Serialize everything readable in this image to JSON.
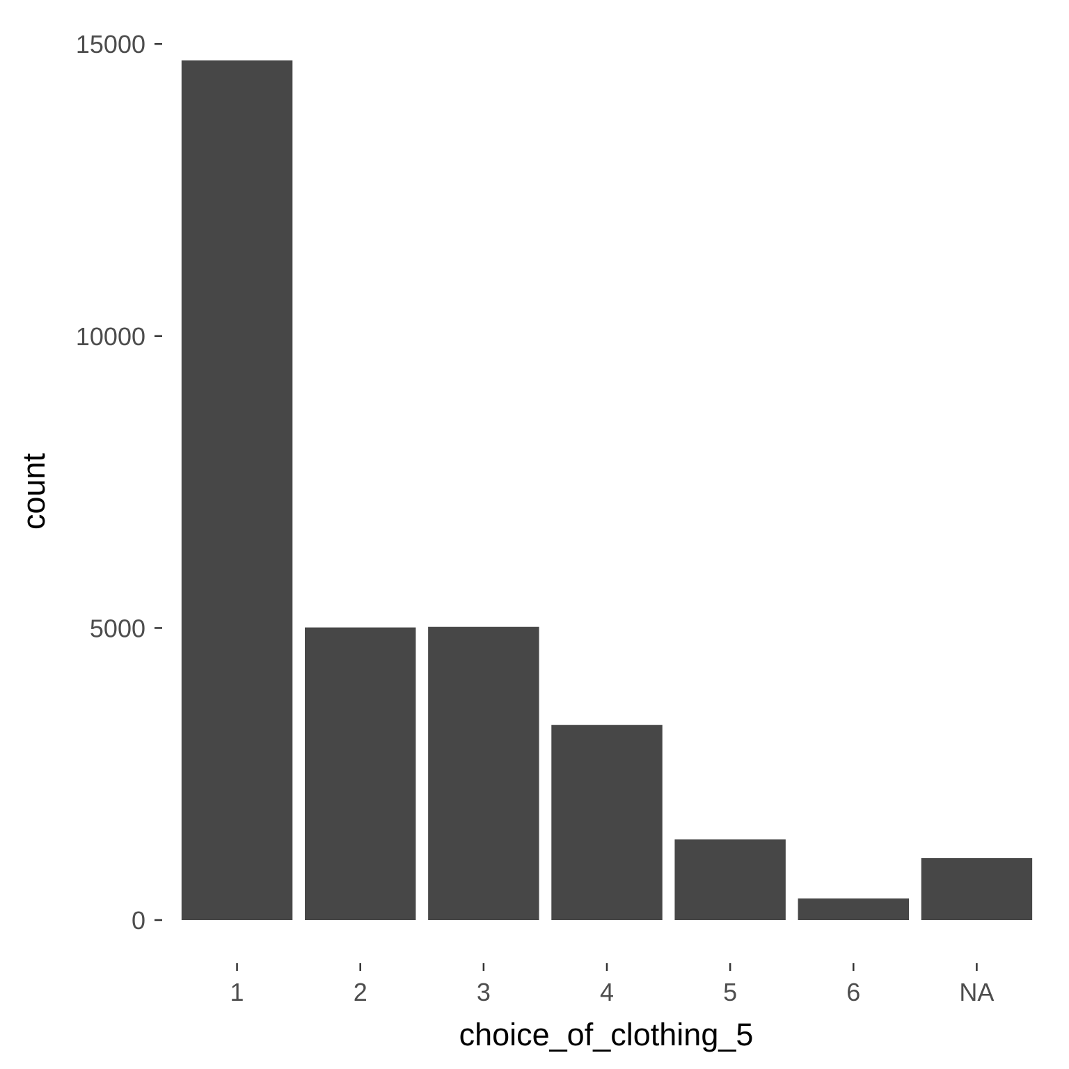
{
  "chart_data": {
    "type": "bar",
    "title": "",
    "xlabel": "choice_of_clothing_5",
    "ylabel": "count",
    "categories": [
      "1",
      "2",
      "3",
      "4",
      "5",
      "6",
      "NA"
    ],
    "values": [
      14720,
      5010,
      5020,
      3340,
      1380,
      370,
      1060
    ],
    "ylim": [
      0,
      15700
    ],
    "yticks": [
      0,
      5000,
      10000,
      15000
    ],
    "ytick_labels": [
      "0",
      "5000",
      "10000",
      "15000"
    ],
    "grid": false,
    "legend": "none",
    "colors": {
      "bar": "#474747",
      "tick_label": "#4d4d4d",
      "axis_title": "#000000",
      "background": "#ffffff"
    }
  }
}
